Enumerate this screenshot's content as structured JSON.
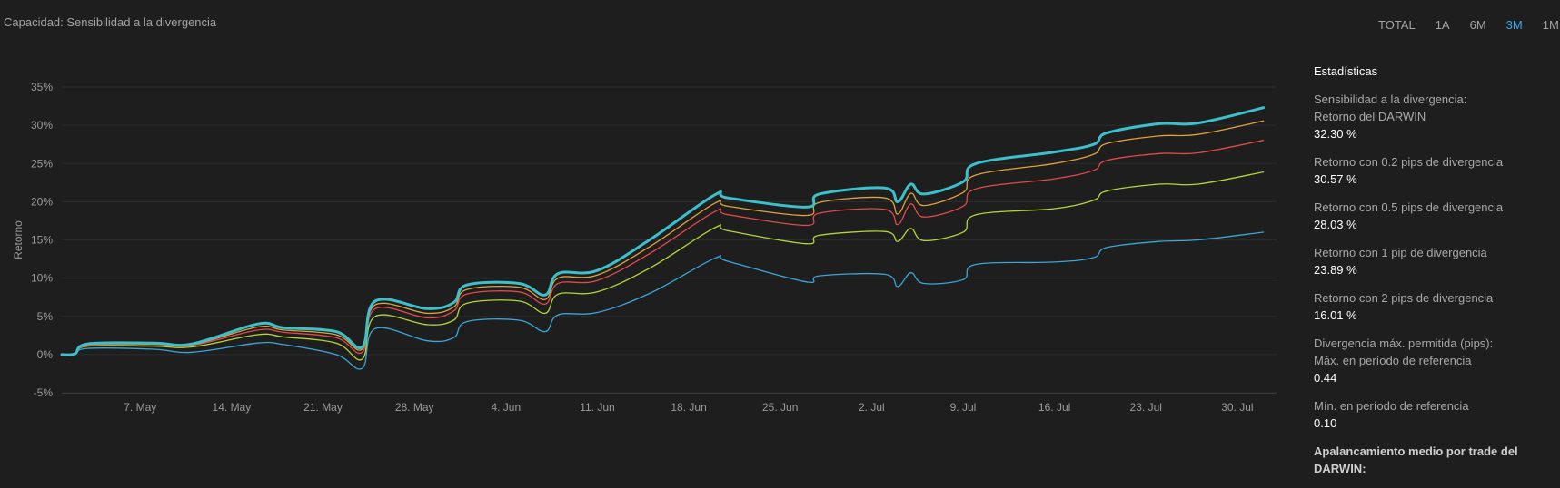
{
  "header": {
    "title": "Capacidad: Sensibilidad a la divergencia"
  },
  "range_tabs": [
    {
      "label": "TOTAL",
      "active": false
    },
    {
      "label": "1A",
      "active": false
    },
    {
      "label": "6M",
      "active": false
    },
    {
      "label": "3M",
      "active": true
    },
    {
      "label": "1M",
      "active": false
    }
  ],
  "stats": {
    "heading": "Estadísticas",
    "divergence_title": "Sensibilidad a la divergencia:",
    "darwin_label": "Retorno del DARWIN",
    "darwin_value": "32.30 %",
    "r02_label": "Retorno con 0.2 pips de divergencia",
    "r02_value": "30.57 %",
    "r05_label": "Retorno con 0.5 pips de divergencia",
    "r05_value": "28.03 %",
    "r1_label": "Retorno con 1 pip de divergencia",
    "r1_value": "23.89 %",
    "r2_label": "Retorno con 2 pips de divergencia",
    "r2_value": "16.01 %",
    "maxdiv_title": "Divergencia máx. permitida (pips):",
    "max_label": "Máx. en período de referencia",
    "max_value": "0.44",
    "min_label": "Mín. en período de referencia",
    "min_value": "0.10",
    "leverage_title": "Apalancamiento medio por trade del DARWIN:"
  },
  "colors": {
    "darwin": "#3cc0cc",
    "r02": "#e0a23a",
    "r05": "#e04a4a",
    "r1": "#b2d63a",
    "r2": "#3aa6d8",
    "background": "#1e1e1e",
    "active_tab": "#36a8f0"
  },
  "chart_data": {
    "type": "line",
    "ylabel": "Retorno",
    "ylim": [
      -5,
      35
    ],
    "yticks": [
      -5,
      0,
      5,
      10,
      15,
      20,
      25,
      30,
      35
    ],
    "ytick_labels": [
      "-5%",
      "0%",
      "5%",
      "10%",
      "15%",
      "20%",
      "25%",
      "30%",
      "35%"
    ],
    "xlim": [
      "2018-05-01",
      "2018-08-02"
    ],
    "xticks": [
      "2018-05-07",
      "2018-05-14",
      "2018-05-21",
      "2018-05-28",
      "2018-06-04",
      "2018-06-11",
      "2018-06-18",
      "2018-06-25",
      "2018-07-02",
      "2018-07-09",
      "2018-07-16",
      "2018-07-23",
      "2018-07-30"
    ],
    "xtick_labels": [
      "7. May",
      "14. May",
      "21. May",
      "28. May",
      "4. Jun",
      "11. Jun",
      "18. Jun",
      "25. Jun",
      "2. Jul",
      "9. Jul",
      "16. Jul",
      "23. Jul",
      "30. Jul"
    ],
    "x": [
      "2018-05-01",
      "2018-05-02",
      "2018-05-03",
      "2018-05-08",
      "2018-05-11",
      "2018-05-16",
      "2018-05-18",
      "2018-05-22",
      "2018-05-24",
      "2018-05-25",
      "2018-05-29",
      "2018-05-31",
      "2018-06-01",
      "2018-06-05",
      "2018-06-07",
      "2018-06-08",
      "2018-06-11",
      "2018-06-15",
      "2018-06-20",
      "2018-06-21",
      "2018-06-27",
      "2018-06-28",
      "2018-07-03",
      "2018-07-04",
      "2018-07-05",
      "2018-07-06",
      "2018-07-09",
      "2018-07-10",
      "2018-07-16",
      "2018-07-19",
      "2018-07-20",
      "2018-07-24",
      "2018-07-27",
      "2018-08-01"
    ],
    "series": [
      {
        "key": "darwin",
        "values": [
          0,
          0.1,
          1.4,
          1.5,
          1.4,
          4.0,
          3.5,
          3.0,
          1.0,
          7.0,
          6.0,
          6.8,
          9.1,
          9.3,
          7.8,
          10.6,
          11.0,
          15.0,
          20.9,
          20.5,
          19.3,
          21.0,
          21.8,
          20.0,
          22.3,
          21.0,
          22.6,
          25.0,
          26.5,
          27.5,
          29.0,
          30.2,
          30.3,
          32.3
        ]
      },
      {
        "key": "r02",
        "values": [
          0,
          0.1,
          1.3,
          1.4,
          1.3,
          3.6,
          3.2,
          2.6,
          0.7,
          6.5,
          5.4,
          6.2,
          8.5,
          8.8,
          7.2,
          10.0,
          10.4,
          14.1,
          19.8,
          19.4,
          18.2,
          19.9,
          20.5,
          18.4,
          21.1,
          19.5,
          21.2,
          23.5,
          25.0,
          26.2,
          27.6,
          28.6,
          28.8,
          30.57
        ]
      },
      {
        "key": "r05",
        "values": [
          0,
          0.1,
          1.2,
          1.3,
          1.2,
          3.2,
          2.9,
          2.2,
          0.3,
          6.0,
          4.8,
          5.7,
          7.9,
          8.2,
          6.6,
          9.3,
          9.7,
          13.2,
          18.7,
          18.3,
          16.9,
          18.5,
          19.0,
          17.0,
          19.7,
          18.0,
          19.4,
          21.7,
          23.0,
          24.1,
          25.4,
          26.3,
          26.4,
          28.03
        ]
      },
      {
        "key": "r1",
        "values": [
          0,
          0.1,
          1.1,
          1.1,
          1.0,
          2.6,
          2.3,
          1.5,
          -0.6,
          5.0,
          3.9,
          4.5,
          6.7,
          7.0,
          5.4,
          7.9,
          8.2,
          11.3,
          16.6,
          16.2,
          14.5,
          15.6,
          16.1,
          14.8,
          16.5,
          14.9,
          16.0,
          18.3,
          19.1,
          20.2,
          21.4,
          22.3,
          22.3,
          23.89
        ]
      },
      {
        "key": "r2",
        "values": [
          0,
          0.1,
          0.8,
          0.7,
          0.3,
          1.5,
          1.3,
          0.0,
          -1.8,
          3.4,
          1.8,
          2.2,
          4.3,
          4.5,
          3.0,
          5.2,
          5.5,
          8.0,
          12.6,
          12.2,
          9.5,
          10.3,
          10.5,
          8.9,
          10.7,
          9.3,
          9.8,
          11.8,
          12.1,
          12.7,
          14.0,
          14.8,
          15.0,
          16.01
        ]
      }
    ]
  }
}
